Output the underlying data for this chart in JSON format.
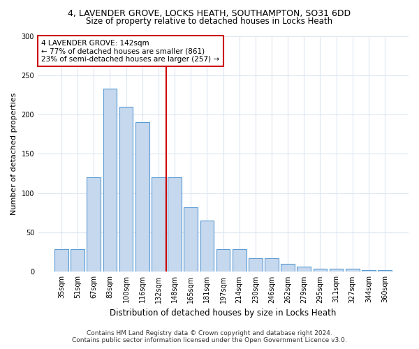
{
  "title_line1": "4, LAVENDER GROVE, LOCKS HEATH, SOUTHAMPTON, SO31 6DD",
  "title_line2": "Size of property relative to detached houses in Locks Heath",
  "xlabel": "Distribution of detached houses by size in Locks Heath",
  "ylabel": "Number of detached properties",
  "footer_line1": "Contains HM Land Registry data © Crown copyright and database right 2024.",
  "footer_line2": "Contains public sector information licensed under the Open Government Licence v3.0.",
  "annotation_line1": "4 LAVENDER GROVE: 142sqm",
  "annotation_line2": "← 77% of detached houses are smaller (861)",
  "annotation_line3": "23% of semi-detached houses are larger (257) →",
  "bar_labels": [
    "35sqm",
    "51sqm",
    "67sqm",
    "83sqm",
    "100sqm",
    "116sqm",
    "132sqm",
    "148sqm",
    "165sqm",
    "181sqm",
    "197sqm",
    "214sqm",
    "230sqm",
    "246sqm",
    "262sqm",
    "279sqm",
    "295sqm",
    "311sqm",
    "327sqm",
    "344sqm",
    "360sqm"
  ],
  "bar_values": [
    29,
    29,
    120,
    233,
    210,
    190,
    120,
    120,
    82,
    65,
    29,
    29,
    17,
    17,
    10,
    7,
    4,
    4,
    4,
    2,
    2
  ],
  "bar_color": "#c5d8ed",
  "bar_edge_color": "#5b9bd5",
  "red_line_color": "#cc0000",
  "background_color": "#ffffff",
  "grid_color": "#dce6f1",
  "ylim": [
    0,
    300
  ],
  "yticks": [
    0,
    50,
    100,
    150,
    200,
    250,
    300
  ],
  "annotation_box_color": "#ffffff",
  "annotation_box_edge": "#cc0000",
  "title1_fontsize": 9,
  "title2_fontsize": 8.5,
  "xlabel_fontsize": 8.5,
  "ylabel_fontsize": 8,
  "tick_fontsize": 7,
  "annotation_fontsize": 7.5,
  "footer_fontsize": 6.5
}
